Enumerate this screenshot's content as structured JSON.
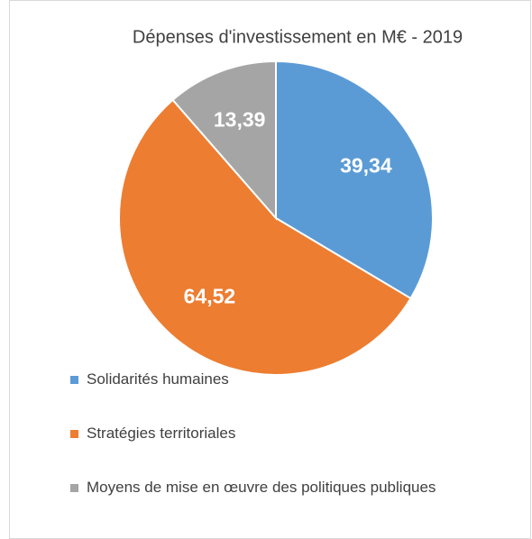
{
  "chart_data": {
    "type": "pie",
    "title": "Dépenses d'investissement en M€ - 2019",
    "categories": [
      "Solidarités humaines",
      "Stratégies territoriales",
      "Moyens de mise en œuvre des politiques publiques"
    ],
    "values": [
      39.34,
      64.52,
      13.39
    ],
    "value_labels": [
      "39,34",
      "64,52",
      "13,39"
    ],
    "colors": [
      "#5b9bd5",
      "#ed7d31",
      "#a5a5a5"
    ],
    "legend": "bottom"
  }
}
